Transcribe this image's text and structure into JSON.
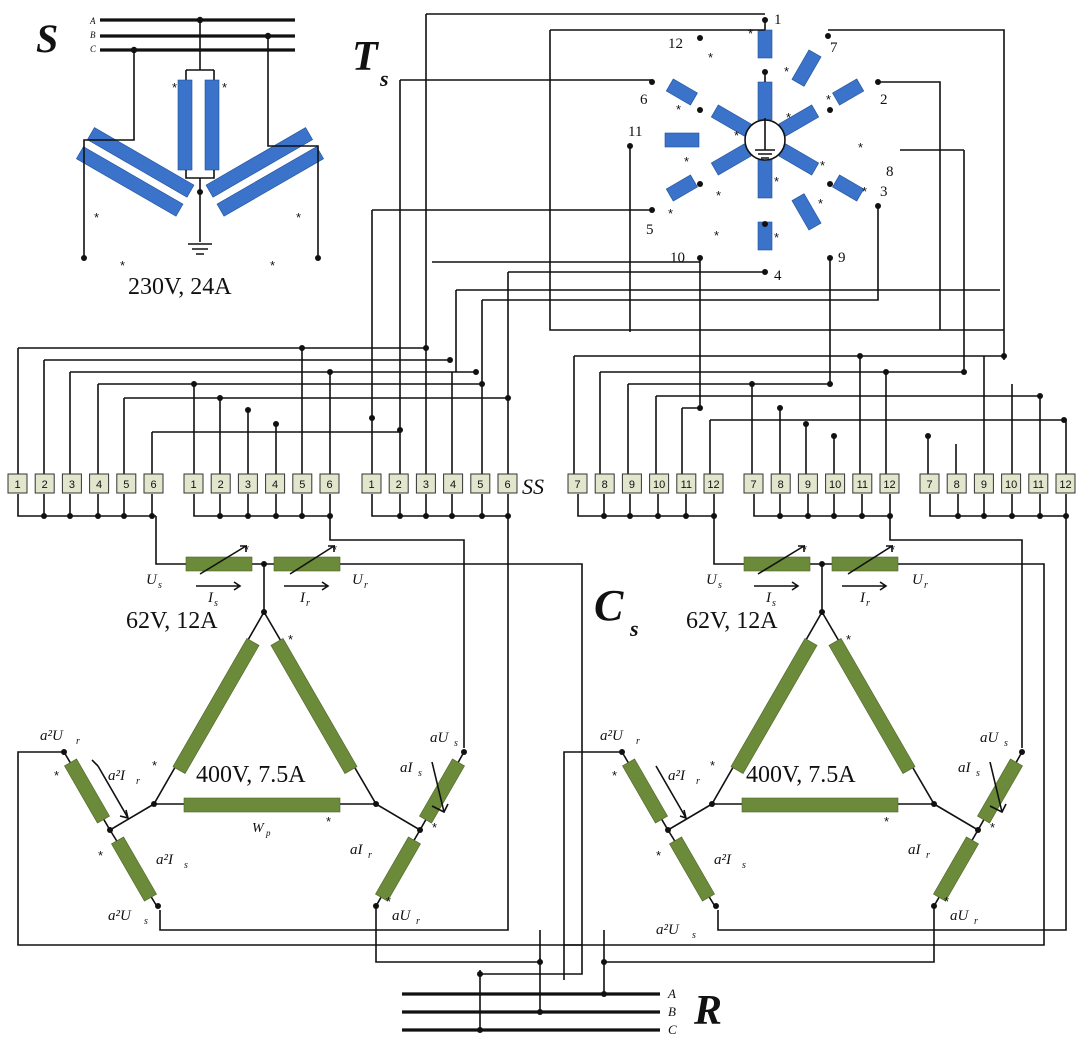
{
  "labels": {
    "source": "S",
    "transformer": "T",
    "transformer_sub": "s",
    "converter": "C",
    "converter_sub": "s",
    "load": "R",
    "switch_strip": "SS",
    "wp": "W",
    "wp_sub": "p"
  },
  "phases": {
    "a": "A",
    "b": "B",
    "c": "C"
  },
  "ratings": {
    "source": "230V, 24A",
    "series": "62V, 12A",
    "triangle": "400V, 7.5A"
  },
  "winding_numbers": [
    "1",
    "2",
    "3",
    "4",
    "5",
    "6",
    "7",
    "8",
    "9",
    "10",
    "11",
    "12"
  ],
  "terminal_groups": [
    [
      "1",
      "2",
      "3",
      "4",
      "5",
      "6"
    ],
    [
      "1",
      "2",
      "3",
      "4",
      "5",
      "6"
    ],
    [
      "1",
      "2",
      "3",
      "4",
      "5",
      "6"
    ],
    [
      "7",
      "8",
      "9",
      "10",
      "11",
      "12"
    ],
    [
      "7",
      "8",
      "9",
      "10",
      "11",
      "12"
    ],
    [
      "7",
      "8",
      "9",
      "10",
      "11",
      "12"
    ]
  ],
  "unit_labels": {
    "us": "U",
    "us_sub": "s",
    "ur": "U",
    "ur_sub": "r",
    "is": "I",
    "is_sub": "s",
    "ir": "I",
    "ir_sub": "r",
    "a2ur": "a²U",
    "a2ur_sub": "r",
    "a2ir": "a²I",
    "a2ir_sub": "r",
    "a2is": "a²I",
    "a2is_sub": "s",
    "a2us": "a²U",
    "a2us_sub": "s",
    "aus": "aU",
    "aus_sub": "s",
    "ais": "aI",
    "ais_sub": "s",
    "air": "aI",
    "air_sub": "r",
    "aur": "aU",
    "aur_sub": "r"
  },
  "polarity_mark": "*",
  "colors": {
    "primary_coil": "#3a73c9",
    "converter_coil": "#6b8a3a",
    "terminal": "#e2e6cd"
  }
}
